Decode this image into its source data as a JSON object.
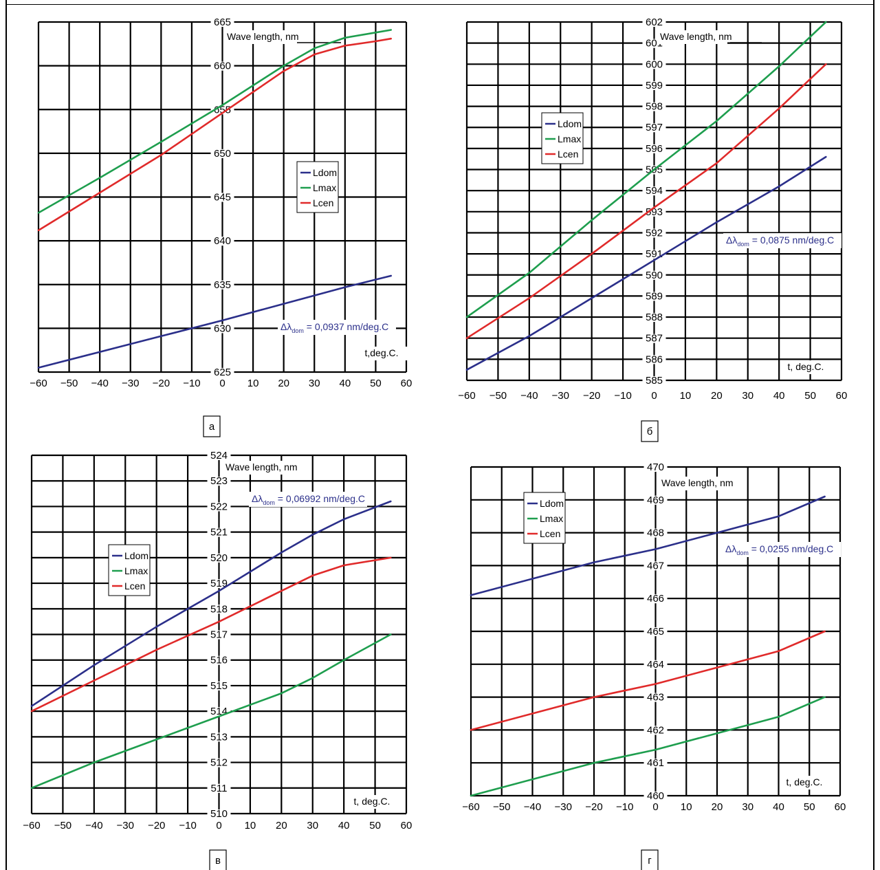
{
  "colors": {
    "Ldom": "#2b2f8a",
    "Lmax": "#1e9e4e",
    "Lcen": "#e02a2a"
  },
  "chart_data": [
    {
      "type": "line",
      "panel_label": "а",
      "ylabel": "Wave length, nm",
      "xlabel": "t,deg.C.",
      "xlim": [
        -60,
        60
      ],
      "ylim": [
        625,
        665
      ],
      "x_ticks": [
        "−60",
        "−50",
        "−40",
        "−30",
        "−20",
        "−10",
        "0",
        "10",
        "20",
        "30",
        "40",
        "50",
        "60"
      ],
      "y_ticks": [
        "625",
        "630",
        "635",
        "640",
        "645",
        "650",
        "655",
        "660",
        "665"
      ],
      "legend": [
        "Ldom",
        "Lmax",
        "Lcen"
      ],
      "legend_position": "center-right",
      "annotation": {
        "symbol": "Δλ",
        "subscript": "dom",
        "text": " = 0,0937 nm/deg.C"
      },
      "series": [
        {
          "name": "Ldom",
          "x": [
            -60,
            -40,
            -20,
            0,
            20,
            40,
            55
          ],
          "y": [
            625.5,
            627.3,
            629.1,
            630.9,
            632.8,
            634.7,
            636
          ]
        },
        {
          "name": "Lmax",
          "x": [
            -60,
            -40,
            -20,
            0,
            20,
            30,
            40,
            50,
            55
          ],
          "y": [
            643.2,
            647.2,
            651.3,
            655.5,
            660,
            662,
            663.2,
            663.8,
            664.1
          ]
        },
        {
          "name": "Lcen",
          "x": [
            -60,
            -40,
            -20,
            0,
            20,
            30,
            40,
            50,
            55
          ],
          "y": [
            641.2,
            645.5,
            649.8,
            654.6,
            659.4,
            661.3,
            662.3,
            662.8,
            663.1
          ]
        }
      ]
    },
    {
      "type": "line",
      "panel_label": "б",
      "ylabel": "Wave length, nm",
      "xlabel": "t, deg.C.",
      "xlim": [
        -60,
        60
      ],
      "ylim": [
        585,
        602
      ],
      "x_ticks": [
        "−60",
        "−50",
        "−40",
        "−30",
        "−20",
        "−10",
        "0",
        "10",
        "20",
        "30",
        "40",
        "50",
        "60"
      ],
      "y_ticks": [
        "585",
        "586",
        "587",
        "588",
        "589",
        "590",
        "591",
        "592",
        "593",
        "594",
        "595",
        "596",
        "597",
        "598",
        "599",
        "600",
        "601",
        "602"
      ],
      "legend": [
        "Ldom",
        "Lmax",
        "Lcen"
      ],
      "legend_position": "upper-center",
      "annotation": {
        "symbol": "Δλ",
        "subscript": "dom",
        "text": " = 0,0875 nm/deg.C"
      },
      "series": [
        {
          "name": "Ldom",
          "x": [
            -60,
            -40,
            -20,
            0,
            20,
            40,
            55
          ],
          "y": [
            585.5,
            587.1,
            588.9,
            590.7,
            592.5,
            594.2,
            595.6
          ]
        },
        {
          "name": "Lmax",
          "x": [
            -60,
            -40,
            -20,
            0,
            20,
            40,
            55
          ],
          "y": [
            588,
            590.1,
            592.6,
            595,
            597.3,
            599.9,
            602
          ]
        },
        {
          "name": "Lcen",
          "x": [
            -60,
            -40,
            -20,
            0,
            20,
            40,
            55
          ],
          "y": [
            587,
            588.9,
            591,
            593.2,
            595.3,
            597.9,
            600
          ]
        }
      ]
    },
    {
      "type": "line",
      "panel_label": "в",
      "ylabel": "Wave length, nm",
      "xlabel": "t, deg.C.",
      "xlim": [
        -60,
        60
      ],
      "ylim": [
        510,
        524
      ],
      "x_ticks": [
        "−60",
        "−50",
        "−40",
        "−30",
        "−20",
        "−10",
        "0",
        "10",
        "20",
        "30",
        "40",
        "50",
        "60"
      ],
      "y_ticks": [
        "510",
        "511",
        "512",
        "513",
        "514",
        "515",
        "516",
        "517",
        "518",
        "519",
        "520",
        "521",
        "522",
        "523",
        "524"
      ],
      "legend": [
        "Ldom",
        "Lmax",
        "Lcen"
      ],
      "legend_position": "center-left",
      "annotation": {
        "symbol": "Δλ",
        "subscript": "dom",
        "text": " = 0,06992 nm/deg.C"
      },
      "series": [
        {
          "name": "Ldom",
          "x": [
            -60,
            -40,
            -20,
            0,
            20,
            30,
            40,
            55
          ],
          "y": [
            514.2,
            515.8,
            517.3,
            518.7,
            520.2,
            520.9,
            521.5,
            522.2
          ]
        },
        {
          "name": "Lmax",
          "x": [
            -60,
            -40,
            -20,
            0,
            20,
            30,
            40,
            55
          ],
          "y": [
            511,
            512,
            512.9,
            513.8,
            514.7,
            515.3,
            516,
            517
          ]
        },
        {
          "name": "Lcen",
          "x": [
            -60,
            -40,
            -20,
            0,
            20,
            30,
            40,
            55
          ],
          "y": [
            514,
            515.2,
            516.4,
            517.5,
            518.7,
            519.3,
            519.7,
            520
          ]
        }
      ]
    },
    {
      "type": "line",
      "panel_label": "г",
      "ylabel": "Wave length, nm",
      "xlabel": "t, deg.C.",
      "xlim": [
        -60,
        60
      ],
      "ylim": [
        460,
        470
      ],
      "x_ticks": [
        "−60",
        "−50",
        "−40",
        "−30",
        "−20",
        "−10",
        "0",
        "10",
        "20",
        "30",
        "40",
        "50",
        "60"
      ],
      "y_ticks": [
        "460",
        "461",
        "462",
        "463",
        "464",
        "465",
        "466",
        "467",
        "468",
        "469",
        "470"
      ],
      "legend": [
        "Ldom",
        "Lmax",
        "Lcen"
      ],
      "legend_position": "upper-left",
      "annotation": {
        "symbol": "Δλ",
        "subscript": "dom",
        "text": " = 0,0255 nm/deg.C"
      },
      "series": [
        {
          "name": "Ldom",
          "x": [
            -60,
            -40,
            -20,
            0,
            20,
            40,
            55
          ],
          "y": [
            466.1,
            466.6,
            467.1,
            467.5,
            468,
            468.5,
            469.1
          ]
        },
        {
          "name": "Lmax",
          "x": [
            -60,
            -40,
            -20,
            0,
            20,
            40,
            55
          ],
          "y": [
            460,
            460.5,
            461,
            461.4,
            461.9,
            462.4,
            463
          ]
        },
        {
          "name": "Lcen",
          "x": [
            -60,
            -40,
            -20,
            0,
            20,
            40,
            55
          ],
          "y": [
            462,
            462.5,
            463,
            463.4,
            463.9,
            464.4,
            465
          ]
        }
      ]
    }
  ]
}
